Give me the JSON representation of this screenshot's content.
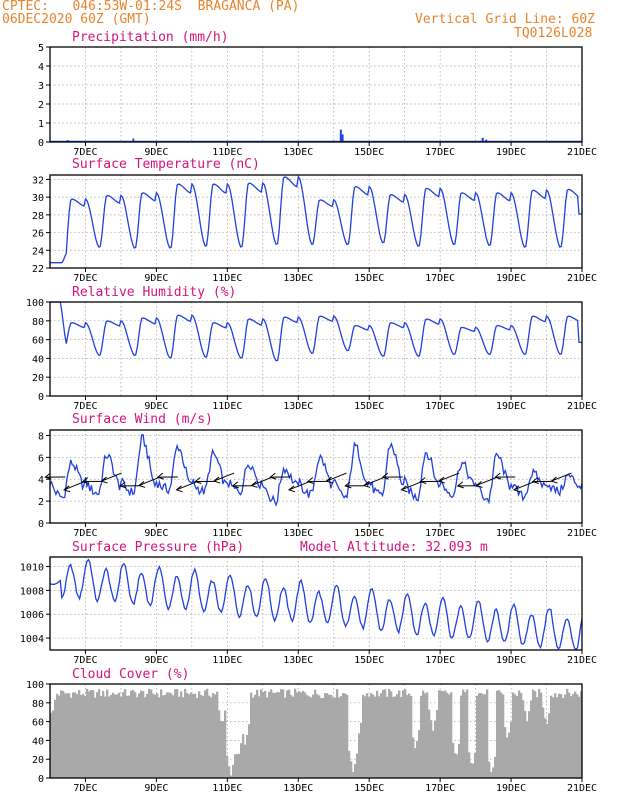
{
  "header": {
    "left_line1": "CPTEC:   046:53W-01:24S  BRAGANCA (PA)",
    "left_line2": "06DEC2020 60Z (GMT)",
    "right_line1": "Vertical Grid Line: 60Z",
    "right_line2": "TQ0126L028"
  },
  "colors": {
    "header": "#e8842c",
    "title": "#d4147c",
    "line": "#2040e0",
    "cloud": "#a9a9a9",
    "wind_arrow": "#000000"
  },
  "x_dates": [
    "7DEC",
    "9DEC",
    "11DEC",
    "13DEC",
    "15DEC",
    "17DEC",
    "19DEC",
    "21DEC"
  ],
  "chart_data": [
    {
      "type": "bar",
      "title": "Precipitation (mm/h)",
      "ylim": [
        0,
        5
      ],
      "yticks": [
        0,
        1,
        2,
        3,
        4,
        5
      ],
      "x_range_days": [
        6,
        21
      ],
      "spikes": [
        [
          6.5,
          0.1
        ],
        [
          8.35,
          0.18
        ],
        [
          14.2,
          0.65
        ],
        [
          14.25,
          0.4
        ],
        [
          18.2,
          0.22
        ],
        [
          18.3,
          0.12
        ]
      ],
      "grid": true
    },
    {
      "type": "line",
      "title": "Surface Temperature (nC)",
      "ylim": [
        22,
        32.5
      ],
      "yticks": [
        22,
        24,
        26,
        28,
        30,
        32
      ],
      "x_range_days": [
        6,
        21
      ],
      "daily_min": [
        22.6,
        24.3,
        24.2,
        24.2,
        24.4,
        24.3,
        24.6,
        24.6,
        24.6,
        24.8,
        24.4,
        24.6,
        24.5,
        24.3,
        24.3
      ],
      "daily_max": [
        29.8,
        30.2,
        30.5,
        31.5,
        31.5,
        31.6,
        32.3,
        29.7,
        31.2,
        30.3,
        31.0,
        30.5,
        30.5,
        30.8,
        30.9
      ],
      "end_value": 28.1,
      "grid": true
    },
    {
      "type": "line",
      "title": "Relative Humidity (%)",
      "ylim": [
        0,
        100
      ],
      "yticks": [
        0,
        20,
        40,
        60,
        80,
        100
      ],
      "x_range_days": [
        6,
        21
      ],
      "start_value": 100,
      "daily_min": [
        50,
        43,
        43,
        40,
        41,
        40,
        37,
        45,
        48,
        42,
        42,
        44,
        44,
        44,
        44
      ],
      "daily_max": [
        78,
        80,
        83,
        86,
        78,
        82,
        84,
        85,
        75,
        78,
        82,
        73,
        75,
        85,
        85
      ],
      "end_value": 57,
      "grid": true
    },
    {
      "type": "line",
      "title": "Surface Wind (m/s)",
      "ylim": [
        0,
        8.5
      ],
      "yticks": [
        0,
        2,
        4,
        6,
        8
      ],
      "x_range_days": [
        6,
        21
      ],
      "daily_low": [
        2.2,
        2.6,
        2.7,
        3.0,
        2.8,
        2.8,
        1.8,
        2.5,
        2.2,
        2.3,
        2.2,
        2.6,
        2.0,
        2.3,
        2.8
      ],
      "daily_high": [
        5.5,
        6.2,
        7.7,
        7.0,
        6.3,
        5.5,
        5.0,
        6.0,
        7.0,
        7.2,
        6.5,
        5.5,
        6.2,
        4.5,
        4.3
      ],
      "arrow_count": 28,
      "grid": true
    },
    {
      "type": "line",
      "title": "Surface Pressure (hPa)",
      "annotation": "Model Altitude: 32.093 m",
      "ylim": [
        1003.0,
        1010.8
      ],
      "yticks": [
        1004,
        1006,
        1008,
        1010
      ],
      "x_range_days": [
        6,
        21
      ],
      "trend_start": 1009.1,
      "trend_end": 1004.4,
      "amplitude": 1.5,
      "grid": true
    },
    {
      "type": "bar",
      "title": "Cloud Cover (%)",
      "ylim": [
        0,
        100
      ],
      "yticks": [
        0,
        20,
        40,
        60,
        80,
        100
      ],
      "x_range_days": [
        6,
        21
      ],
      "base_level": 90,
      "dips": [
        [
          6.05,
          65
        ],
        [
          10.85,
          55
        ],
        [
          11.1,
          2
        ],
        [
          11.3,
          20
        ],
        [
          11.5,
          35
        ],
        [
          14.55,
          5
        ],
        [
          14.65,
          35
        ],
        [
          16.3,
          30
        ],
        [
          16.8,
          50
        ],
        [
          17.45,
          20
        ],
        [
          17.9,
          10
        ],
        [
          18.45,
          3
        ],
        [
          18.9,
          40
        ],
        [
          19.45,
          60
        ],
        [
          20.0,
          55
        ],
        [
          20.3,
          85
        ]
      ],
      "grid": true
    }
  ]
}
